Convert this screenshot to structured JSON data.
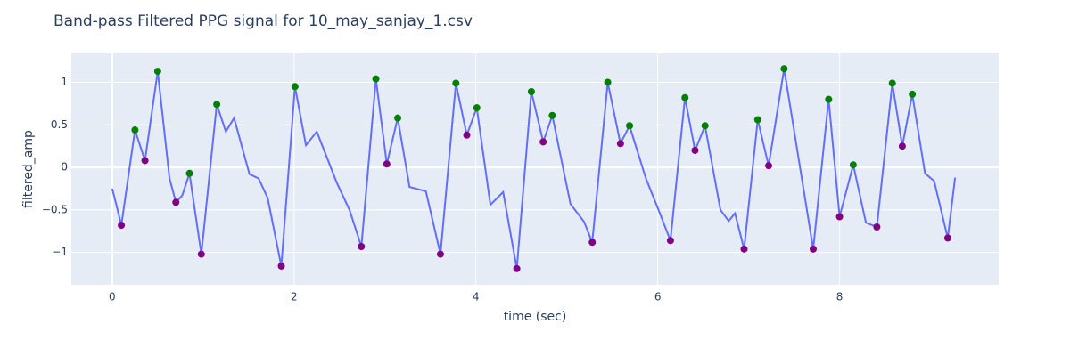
{
  "chart_data": {
    "type": "line",
    "title": "Band-pass Filtered PPG signal for 10_may_sanjay_1.csv",
    "x_label": "time (sec)",
    "y_label": "filtered_amp",
    "xlim": [
      -0.45,
      9.75
    ],
    "ylim": [
      -1.38,
      1.34
    ],
    "xticks": [
      0,
      2,
      4,
      6,
      8
    ],
    "yticks": [
      {
        "value": -1,
        "label": "−1"
      },
      {
        "value": -0.5,
        "label": "−0.5"
      },
      0,
      0.5,
      1
    ],
    "grid": true,
    "series": [
      {
        "mode": "lines",
        "color": "#636efa",
        "x": [
          0,
          0.04,
          0.1,
          0.25,
          0.36,
          0.5,
          0.63,
          0.7,
          0.77,
          0.85,
          0.98,
          1.15,
          1.25,
          1.34,
          1.51,
          1.61,
          1.71,
          1.86,
          2.01,
          2.13,
          2.25,
          2.47,
          2.61,
          2.74,
          2.9,
          3.02,
          3.14,
          3.27,
          3.45,
          3.61,
          3.78,
          3.9,
          4.01,
          4.16,
          4.3,
          4.45,
          4.61,
          4.74,
          4.84,
          5.04,
          5.19,
          5.28,
          5.45,
          5.59,
          5.69,
          5.87,
          6.02,
          6.14,
          6.3,
          6.41,
          6.52,
          6.69,
          6.78,
          6.85,
          6.95,
          7.1,
          7.22,
          7.39,
          7.71,
          7.88,
          8.0,
          8.15,
          8.29,
          8.41,
          8.58,
          8.69,
          8.8,
          8.94,
          9.04,
          9.19,
          9.27
        ],
        "y": [
          -0.25,
          -0.42,
          -0.68,
          0.44,
          0.08,
          1.13,
          -0.13,
          -0.41,
          -0.33,
          -0.07,
          -1.02,
          0.74,
          0.42,
          0.58,
          -0.08,
          -0.13,
          -0.36,
          -1.16,
          0.95,
          0.26,
          0.42,
          -0.18,
          -0.5,
          -0.93,
          1.04,
          0.04,
          0.58,
          -0.23,
          -0.28,
          -1.02,
          0.99,
          0.38,
          0.7,
          -0.44,
          -0.29,
          -1.19,
          0.89,
          0.3,
          0.61,
          -0.43,
          -0.64,
          -0.88,
          1.0,
          0.28,
          0.49,
          -0.13,
          -0.53,
          -0.86,
          0.82,
          0.2,
          0.49,
          -0.5,
          -0.63,
          -0.54,
          -0.96,
          0.56,
          0.02,
          1.16,
          -0.96,
          0.8,
          -0.58,
          0.03,
          -0.65,
          -0.7,
          0.99,
          0.25,
          0.86,
          -0.07,
          -0.16,
          -0.83,
          -0.12
        ]
      },
      {
        "mode": "markers",
        "color": "#008000",
        "x": [
          0.25,
          0.5,
          0.85,
          1.15,
          2.01,
          2.9,
          3.14,
          3.78,
          4.01,
          4.61,
          4.84,
          5.45,
          5.69,
          6.3,
          6.52,
          7.1,
          7.39,
          7.88,
          8.15,
          8.58,
          8.8
        ],
        "y": [
          0.44,
          1.13,
          -0.07,
          0.74,
          0.95,
          1.04,
          0.58,
          0.99,
          0.7,
          0.89,
          0.61,
          1.0,
          0.49,
          0.82,
          0.49,
          0.56,
          1.16,
          0.8,
          0.03,
          0.99,
          0.86
        ]
      },
      {
        "mode": "markers",
        "color": "#800080",
        "x": [
          0.1,
          0.36,
          0.7,
          0.98,
          1.86,
          2.74,
          3.02,
          3.61,
          3.9,
          4.45,
          4.74,
          5.28,
          5.59,
          6.14,
          6.41,
          6.95,
          7.22,
          7.71,
          8.0,
          8.41,
          8.69,
          9.19
        ],
        "y": [
          -0.68,
          0.08,
          -0.41,
          -1.02,
          -1.16,
          -0.93,
          0.04,
          -1.02,
          0.38,
          -1.19,
          0.3,
          -0.88,
          0.28,
          -0.86,
          0.2,
          -0.96,
          0.02,
          -0.96,
          -0.58,
          -0.7,
          0.25,
          -0.83
        ]
      }
    ]
  }
}
